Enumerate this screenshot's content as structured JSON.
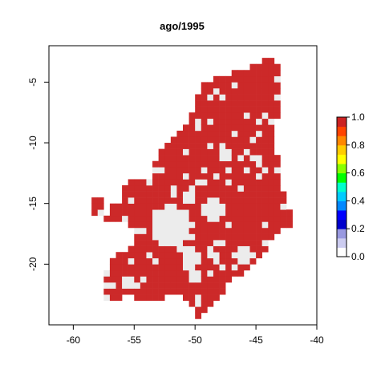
{
  "title": "ago/1995",
  "chart_data": {
    "type": "heatmap",
    "title": "ago/1995",
    "x_ticks": [
      -60,
      -55,
      -50,
      -45,
      -40
    ],
    "y_ticks": [
      -5,
      -10,
      -15,
      -20
    ],
    "xlim": [
      -62,
      -40
    ],
    "ylim": [
      -25,
      -2
    ],
    "cell_size_deg": 0.5,
    "colorbar": {
      "min": 0.0,
      "max": 1.0,
      "ticks": [
        "0.0",
        "0.2",
        "0.4",
        "0.6",
        "0.8",
        "1.0"
      ],
      "colors": [
        "#ffffff",
        "#ccccf0",
        "#9999e0",
        "#0000cc",
        "#0000ff",
        "#0088ff",
        "#00ccff",
        "#00ffcc",
        "#00ff00",
        "#88ff00",
        "#ffff00",
        "#ffcc00",
        "#ff8800",
        "#ff4400",
        "#cc2222"
      ]
    },
    "dominant_value": 1.0,
    "dominant_color": "#cc2929",
    "background_value": 0.0,
    "background_color": "#ececec"
  },
  "colors": {
    "high": "#cc2929",
    "low": "#ececec"
  }
}
